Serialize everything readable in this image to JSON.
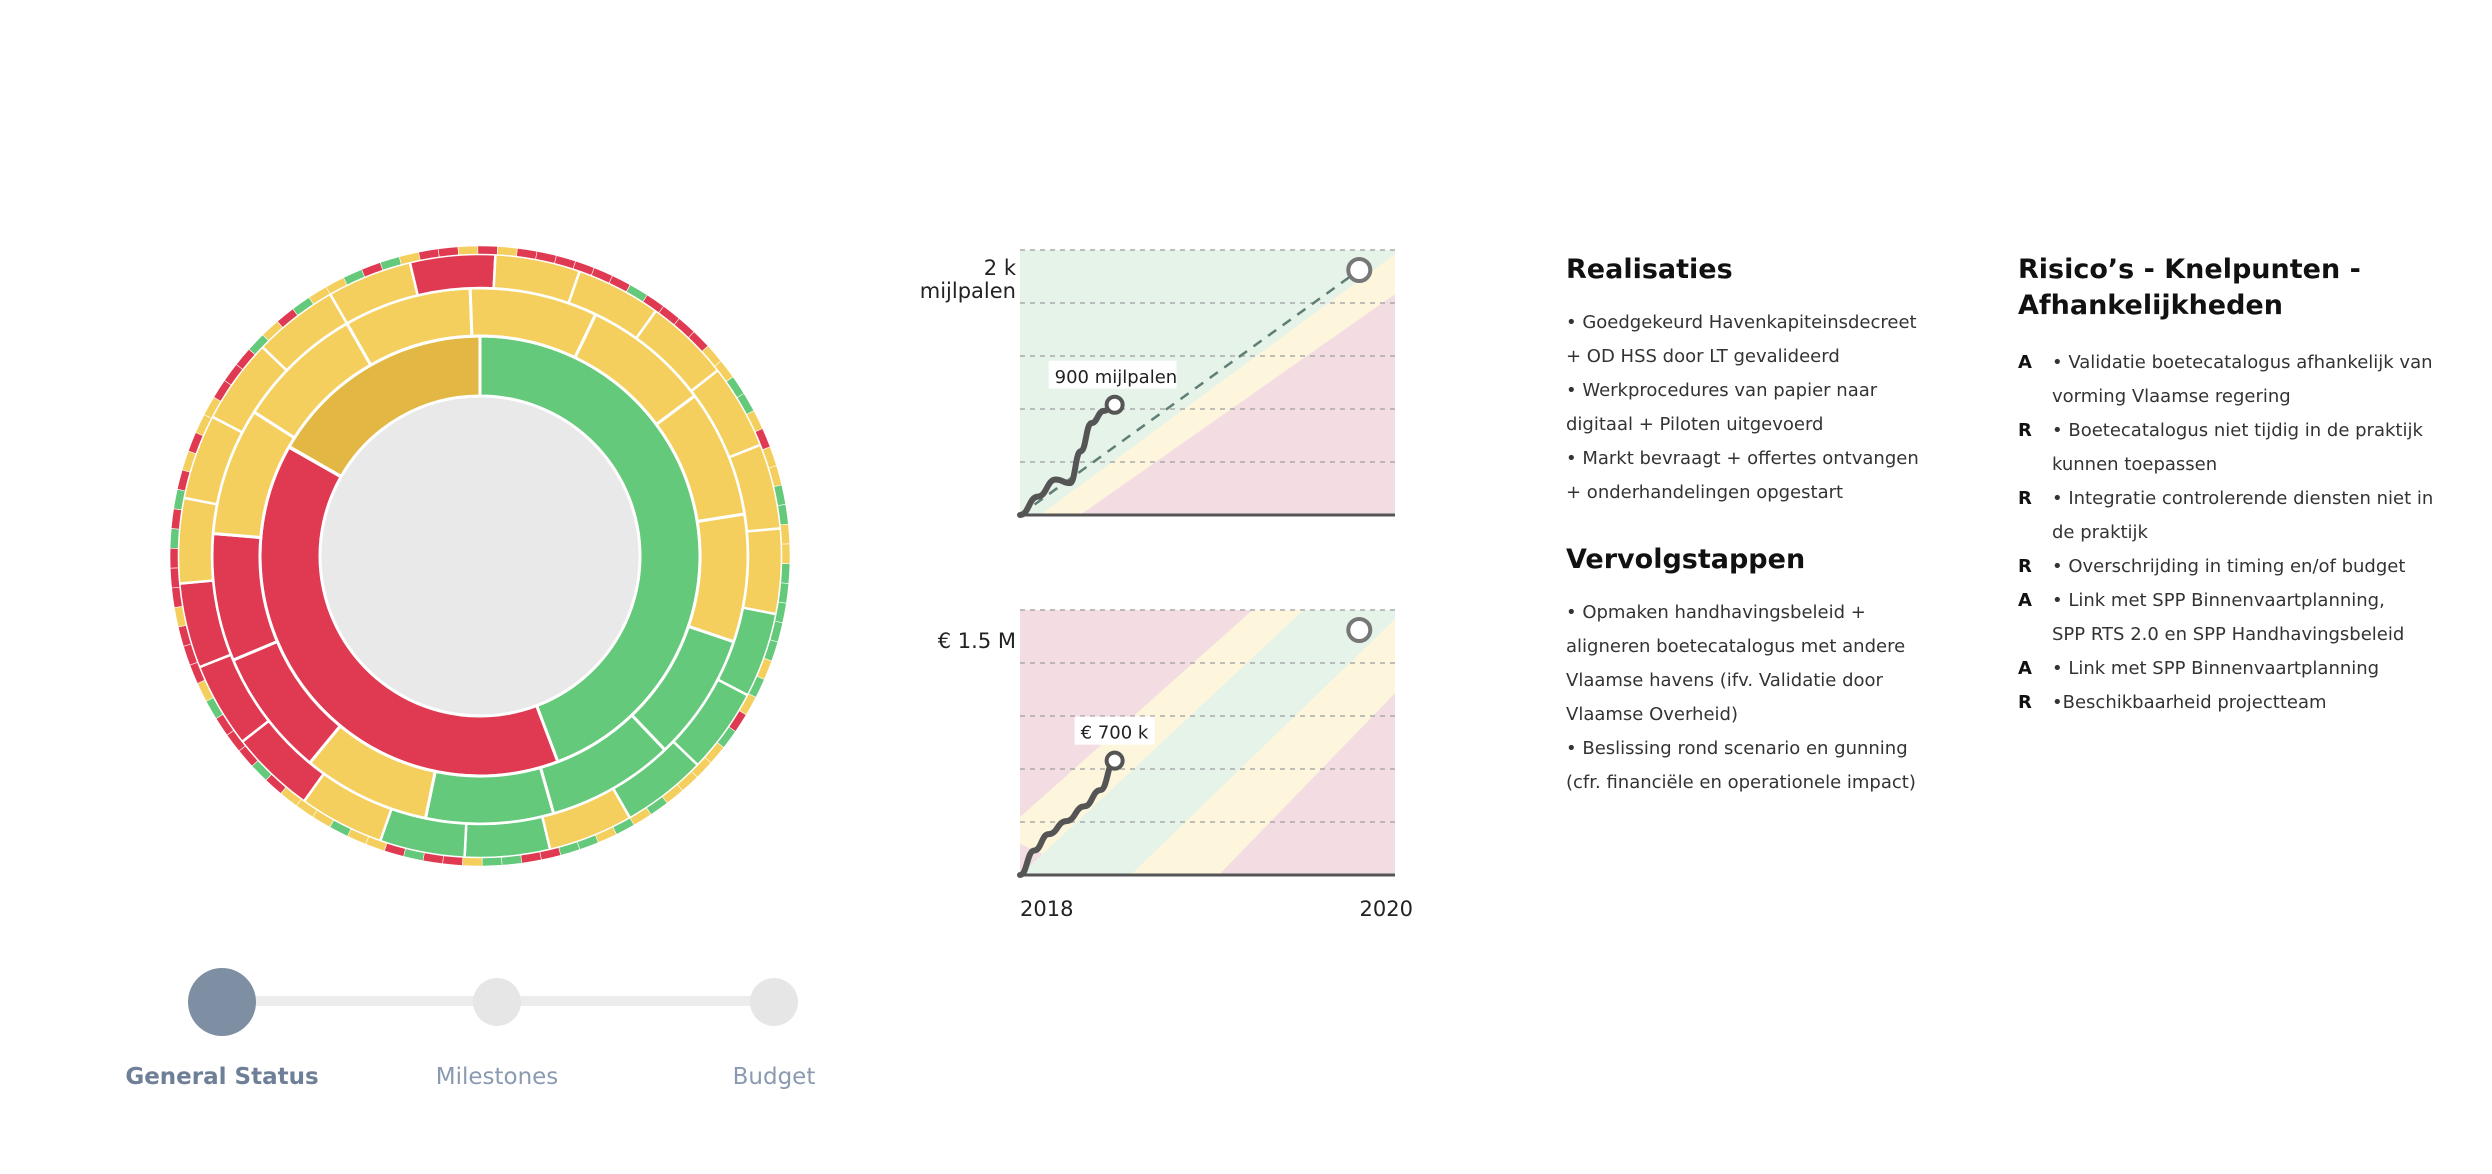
{
  "sunburst": {
    "colors": {
      "green": "#64c97a",
      "yellow": "#f4cf5e",
      "red": "#df3a52",
      "darkyellow": "#e2b743",
      "center": "#e9e9e9"
    },
    "inner": [
      "darkyellow",
      "green",
      "red"
    ],
    "middle": [
      "yellow",
      "yellow",
      "yellow",
      "yellow",
      "yellow",
      "green",
      "green",
      "green",
      "yellow",
      "red",
      "red",
      "yellow",
      "yellow"
    ],
    "outer2": [
      "yellow",
      "red",
      "yellow",
      "yellow",
      "yellow",
      "yellow",
      "yellow",
      "yellow",
      "green",
      "green",
      "green",
      "yellow",
      "green",
      "green",
      "yellow",
      "red",
      "red",
      "red",
      "yellow",
      "yellow",
      "yellow",
      "yellow"
    ],
    "outer1": [
      "yellow",
      "green",
      "red",
      "green",
      "yellow",
      "red",
      "red",
      "yellow",
      "red",
      "yellow",
      "red",
      "red",
      "red",
      "red",
      "red",
      "red",
      "green",
      "red",
      "red",
      "red",
      "red",
      "yellow",
      "yellow",
      "green",
      "green",
      "yellow",
      "red",
      "yellow",
      "yellow",
      "green",
      "green",
      "yellow",
      "yellow",
      "green",
      "green",
      "green",
      "green",
      "green",
      "yellow",
      "green",
      "yellow",
      "red",
      "green",
      "yellow",
      "yellow",
      "yellow",
      "yellow",
      "green",
      "yellow",
      "green",
      "yellow",
      "green",
      "green",
      "red",
      "red",
      "green",
      "green",
      "yellow",
      "red",
      "red",
      "green",
      "red",
      "yellow",
      "yellow",
      "green",
      "yellow",
      "yellow",
      "yellow",
      "red",
      "green",
      "red",
      "red",
      "red",
      "green",
      "yellow",
      "red",
      "red",
      "red",
      "yellow",
      "red",
      "red",
      "red",
      "green",
      "red",
      "green",
      "red",
      "yellow",
      "red",
      "yellow",
      "yellow",
      "red",
      "red",
      "red",
      "green",
      "yellow",
      "red",
      "green",
      "yellow"
    ]
  },
  "stepper": {
    "active_index": 0,
    "steps": [
      {
        "label": "General Status"
      },
      {
        "label": "Milestones"
      },
      {
        "label": "Budget"
      }
    ]
  },
  "chart_data": [
    {
      "type": "line",
      "unit_label_line1": "2 k",
      "unit_label_line2": "mijlpalen",
      "ylim": [
        0,
        2000
      ],
      "x": [
        2018.0,
        2018.1,
        2018.2,
        2018.28,
        2018.34,
        2018.4,
        2018.47,
        2018.53
      ],
      "y": [
        0,
        150,
        290,
        260,
        520,
        750,
        850,
        900
      ],
      "target": {
        "x": 2019.9,
        "y": 2000
      },
      "current_label": "900 mijlpalen",
      "bands": "green-top",
      "grid": true
    },
    {
      "type": "line",
      "unit_label_line1": "€ 1.5 M",
      "unit_label_line2": "",
      "ylim": [
        0,
        1500000
      ],
      "x": [
        2018.0,
        2018.08,
        2018.16,
        2018.26,
        2018.36,
        2018.45,
        2018.53
      ],
      "y": [
        0,
        150000,
        250000,
        330000,
        420000,
        520000,
        700000
      ],
      "target": {
        "x": 2019.9,
        "y": 1500000
      },
      "current_label": "€ 700 k",
      "bands": "diagonal-band",
      "grid": true,
      "x_tick_labels": [
        "2018",
        "2020"
      ]
    }
  ],
  "realisaties": {
    "title": "Realisaties",
    "lines": [
      "• Goedgekeurd Havenkapiteinsdecreet",
      "+ OD HSS door LT gevalideerd",
      "• Werkprocedures van papier naar",
      "digitaal + Piloten uitgevoerd",
      "• Markt bevraagt + offertes ontvangen",
      "+ onderhandelingen opgestart"
    ]
  },
  "vervolgstappen": {
    "title": "Vervolgstappen",
    "lines": [
      "• Opmaken handhavingsbeleid +",
      "aligneren boetecatalogus met andere",
      "Vlaamse havens (ifv. Validatie door",
      "Vlaamse Overheid)",
      "• Beslissing rond scenario en gunning",
      "(cfr. financiële en operationele impact)"
    ]
  },
  "risicos": {
    "title_line1": "Risico’s - Knelpunten -",
    "title_line2": "Afhankelijkheden",
    "rows": [
      {
        "tag": "A",
        "text": "• Validatie boetecatalogus afhankelijk van"
      },
      {
        "tag": "",
        "text": "vorming Vlaamse regering"
      },
      {
        "tag": "R",
        "text": "• Boetecatalogus niet tijdig in de praktijk"
      },
      {
        "tag": "",
        "text": "kunnen toepassen"
      },
      {
        "tag": "R",
        "text": "• Integratie controlerende diensten niet in"
      },
      {
        "tag": "",
        "text": "de praktijk"
      },
      {
        "tag": "R",
        "text": "• Overschrijding in timing en/of budget"
      },
      {
        "tag": "A",
        "text": "• Link met SPP Binnenvaartplanning,"
      },
      {
        "tag": "",
        "text": "SPP RTS 2.0 en SPP Handhavingsbeleid"
      },
      {
        "tag": "A",
        "text": "• Link met SPP Binnenvaartplanning"
      },
      {
        "tag": "R",
        "text": "•Beschikbaarheid projectteam"
      }
    ]
  }
}
